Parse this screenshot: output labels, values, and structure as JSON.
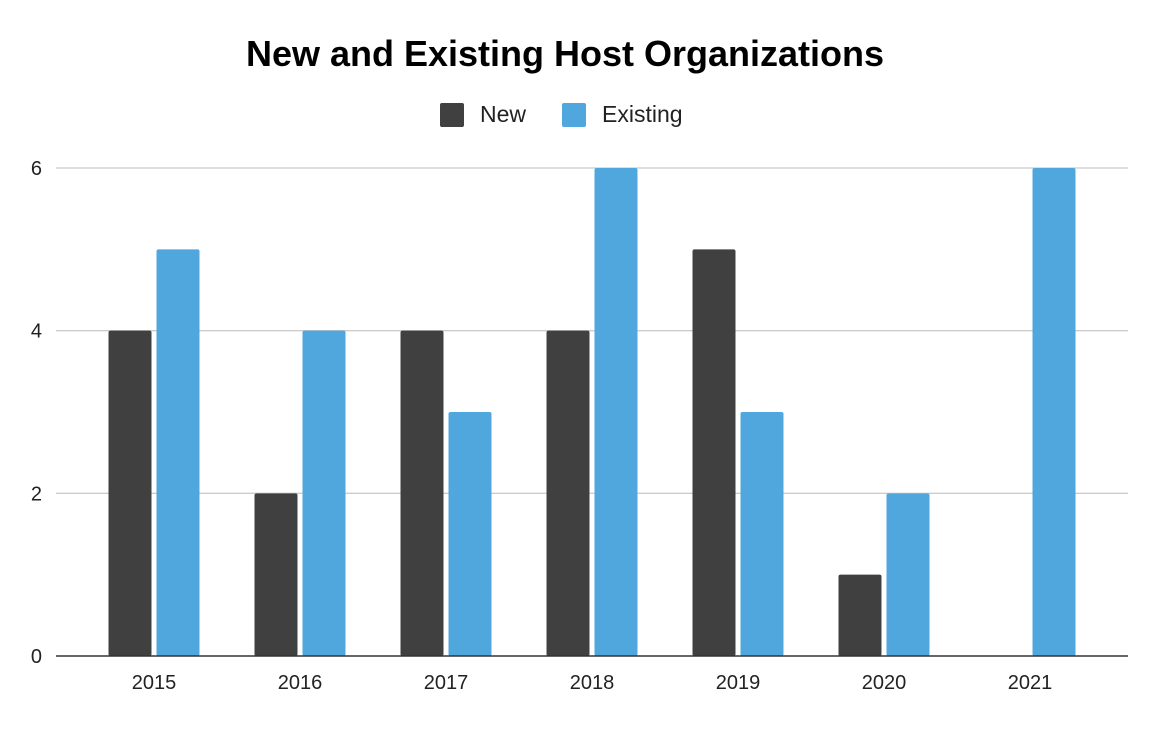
{
  "chart_data": {
    "type": "bar",
    "title": "New and Existing Host Organizations",
    "xlabel": "",
    "ylabel": "",
    "categories": [
      "2015",
      "2016",
      "2017",
      "2018",
      "2019",
      "2020",
      "2021"
    ],
    "series": [
      {
        "name": "New",
        "color": "#404040",
        "values": [
          4,
          2,
          4,
          4,
          5,
          1,
          0
        ]
      },
      {
        "name": "Existing",
        "color": "#4fa7dd",
        "values": [
          5,
          4,
          3,
          6,
          3,
          2,
          6
        ]
      }
    ],
    "ylim": [
      0,
      6
    ],
    "yticks": [
      "0",
      "2",
      "4",
      "6"
    ],
    "grid": true,
    "legend_position": "top"
  }
}
